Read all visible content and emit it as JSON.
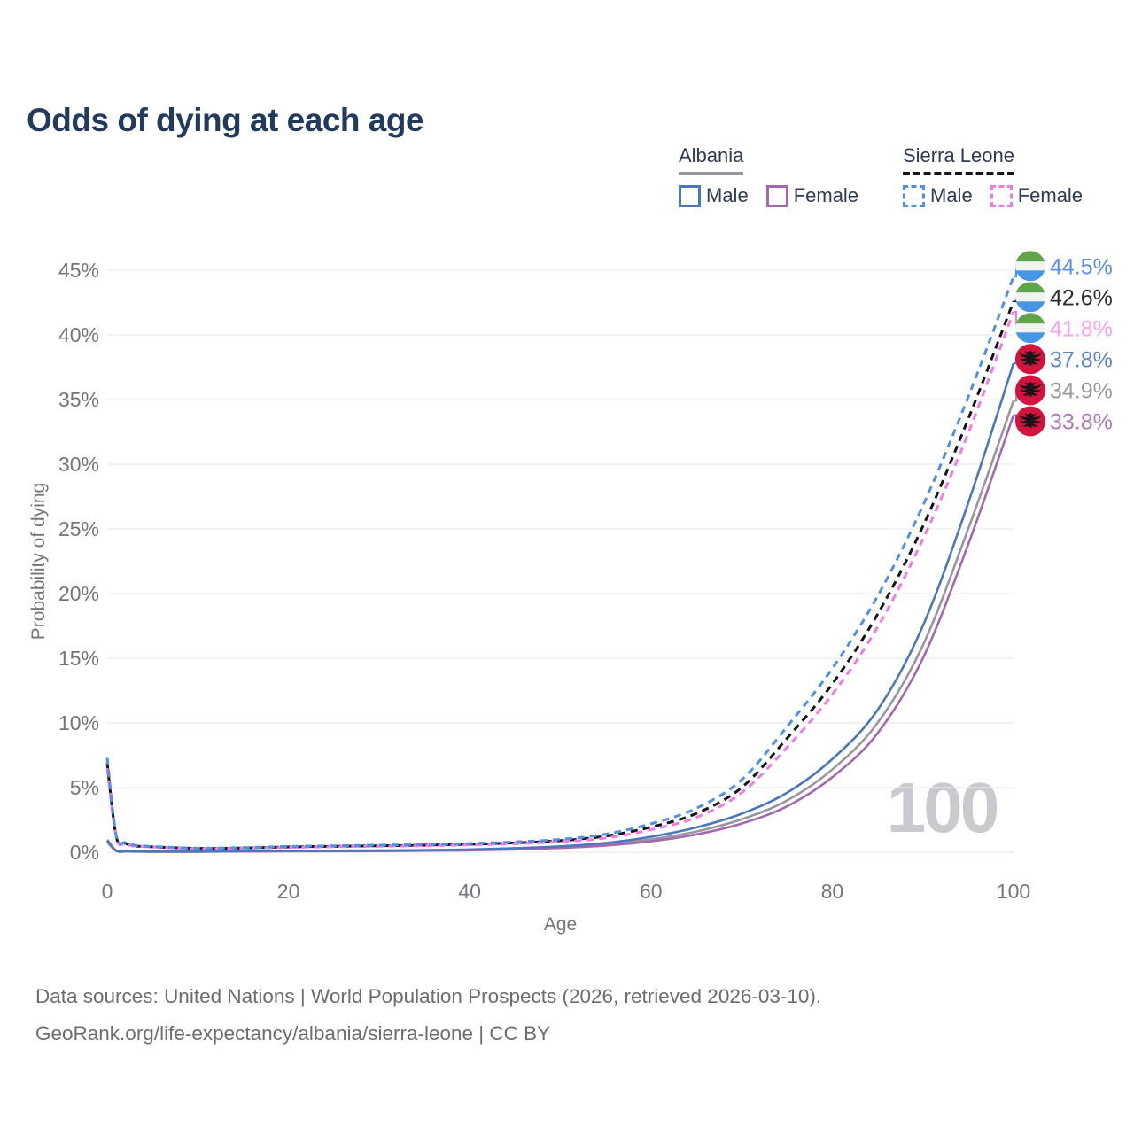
{
  "header": {
    "title": "Odds of dying at each age"
  },
  "legend": {
    "groups": [
      {
        "id": "albania",
        "name": "Albania",
        "underline_style": "solid",
        "underline_color": "#97969e",
        "items": [
          {
            "label": "Male",
            "series_id": "albania-male"
          },
          {
            "label": "Female",
            "series_id": "albania-female"
          }
        ]
      },
      {
        "id": "sierra-leone",
        "name": "Sierra Leone",
        "underline_style": "dashed",
        "underline_color": "#15151a",
        "items": [
          {
            "label": "Male",
            "series_id": "sierra-leone-male"
          },
          {
            "label": "Female",
            "series_id": "sierra-leone-female"
          }
        ]
      }
    ]
  },
  "chart_data": {
    "type": "line",
    "title": "Odds of dying at each age",
    "xlabel": "Age",
    "ylabel": "Probability of dying",
    "xlim": [
      0,
      100
    ],
    "ylim": [
      0,
      45
    ],
    "xticks": [
      0,
      20,
      40,
      60,
      80,
      100
    ],
    "ytick_values": [
      0,
      5,
      10,
      15,
      20,
      25,
      30,
      35,
      40,
      45
    ],
    "ytick_labels": [
      "0%",
      "5%",
      "10%",
      "15%",
      "20%",
      "25%",
      "30%",
      "35%",
      "40%",
      "45%"
    ],
    "grid": "horizontal-only",
    "legend_position": "top-right",
    "watermark": "100",
    "x": [
      0,
      1,
      2,
      3,
      5,
      10,
      15,
      20,
      25,
      30,
      35,
      40,
      45,
      50,
      55,
      60,
      65,
      70,
      75,
      80,
      85,
      90,
      95,
      100
    ],
    "series": [
      {
        "id": "albania-both",
        "name": "Albania — Both sexes",
        "country": "albania",
        "sex": "both",
        "color": "#97969e",
        "label_color": "#9b9aa1",
        "dashed": false,
        "end_label": "34.9%",
        "values": [
          0.88,
          0.11,
          0.065,
          0.055,
          0.045,
          0.045,
          0.07,
          0.09,
          0.1,
          0.11,
          0.14,
          0.18,
          0.27,
          0.4,
          0.62,
          1.0,
          1.6,
          2.55,
          4.0,
          6.4,
          10.0,
          16.0,
          25.0,
          34.9
        ]
      },
      {
        "id": "albania-female",
        "name": "Albania — Female",
        "country": "albania",
        "sex": "female",
        "color": "#a667b0",
        "label_color": "#b279b8",
        "dashed": false,
        "end_label": "33.8%",
        "values": [
          0.8,
          0.1,
          0.06,
          0.05,
          0.04,
          0.04,
          0.06,
          0.07,
          0.08,
          0.09,
          0.12,
          0.15,
          0.22,
          0.34,
          0.52,
          0.85,
          1.38,
          2.22,
          3.55,
          5.8,
          9.2,
          15.0,
          23.8,
          33.8
        ]
      },
      {
        "id": "albania-male",
        "name": "Albania — Male",
        "country": "albania",
        "sex": "male",
        "color": "#4a78ba",
        "label_color": "#5c85c8",
        "dashed": false,
        "end_label": "37.8%",
        "values": [
          0.95,
          0.12,
          0.07,
          0.06,
          0.05,
          0.05,
          0.08,
          0.11,
          0.12,
          0.13,
          0.16,
          0.21,
          0.31,
          0.46,
          0.72,
          1.2,
          1.92,
          2.98,
          4.6,
          7.2,
          11.0,
          17.5,
          27.0,
          37.8
        ]
      },
      {
        "id": "sierra-leone-both",
        "name": "Sierra Leone — Both sexes",
        "country": "sierra-leone",
        "sex": "both",
        "color": "#141414",
        "label_color": "#2b2b2b",
        "dashed": true,
        "end_label": "42.6%",
        "values": [
          6.9,
          1.2,
          0.7,
          0.5,
          0.42,
          0.3,
          0.33,
          0.41,
          0.46,
          0.5,
          0.55,
          0.62,
          0.73,
          0.9,
          1.25,
          1.95,
          3.0,
          5.0,
          8.8,
          13.0,
          18.4,
          25.2,
          33.5,
          42.6
        ]
      },
      {
        "id": "sierra-leone-female",
        "name": "Sierra Leone — Female",
        "country": "sierra-leone",
        "sex": "female",
        "color": "#f678e6",
        "label_color": "#f9a0ef",
        "dashed": true,
        "end_label": "41.8%",
        "values": [
          6.5,
          1.15,
          0.65,
          0.48,
          0.4,
          0.27,
          0.3,
          0.37,
          0.42,
          0.46,
          0.5,
          0.57,
          0.66,
          0.81,
          1.1,
          1.75,
          2.7,
          4.6,
          8.1,
          12.2,
          17.4,
          24.2,
          32.4,
          41.8
        ]
      },
      {
        "id": "sierra-leone-male",
        "name": "Sierra Leone — Male",
        "country": "sierra-leone",
        "sex": "male",
        "color": "#4e90e8",
        "label_color": "#5b8def",
        "dashed": true,
        "end_label": "44.5%",
        "values": [
          7.3,
          1.3,
          0.75,
          0.55,
          0.45,
          0.32,
          0.36,
          0.45,
          0.5,
          0.55,
          0.6,
          0.68,
          0.8,
          1.0,
          1.4,
          2.2,
          3.4,
          5.6,
          9.7,
          14.2,
          19.8,
          26.8,
          35.2,
          44.5
        ]
      }
    ],
    "flag_colors": {
      "sierra_leone": {
        "green": "#5ea449",
        "white": "#f2f3f1",
        "blue": "#4596e4"
      },
      "albania": {
        "red": "#d4143e",
        "eagle": "#151515"
      }
    }
  },
  "footer": {
    "line1": "Data sources: United Nations | World Population Prospects (2026, retrieved 2026-03-10).",
    "line2": "GeoRank.org/life-expectancy/albania/sierra-leone | CC BY"
  }
}
